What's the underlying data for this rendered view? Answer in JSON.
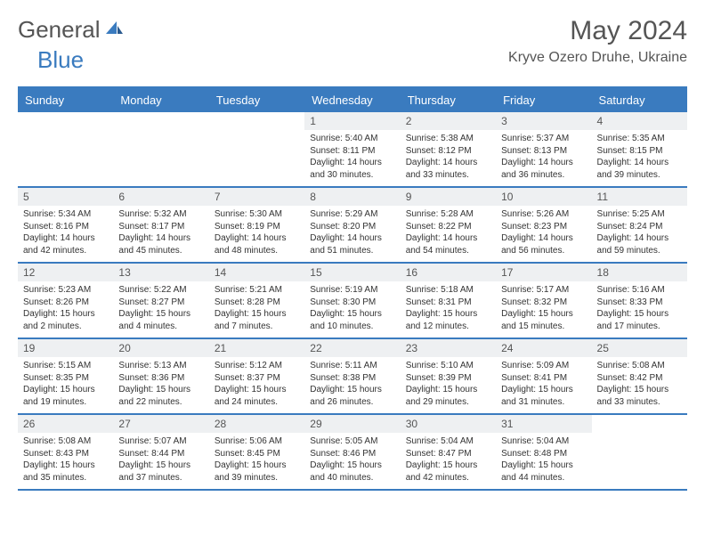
{
  "brand": {
    "part1": "General",
    "part2": "Blue"
  },
  "title": "May 2024",
  "location": "Kryve Ozero Druhe, Ukraine",
  "colors": {
    "header_bg": "#3a7bbf",
    "header_text": "#ffffff",
    "daynum_bg": "#eef0f2",
    "border": "#3a7bbf",
    "text": "#333333",
    "title_text": "#555555"
  },
  "day_headers": [
    "Sunday",
    "Monday",
    "Tuesday",
    "Wednesday",
    "Thursday",
    "Friday",
    "Saturday"
  ],
  "weeks": [
    [
      null,
      null,
      null,
      {
        "n": "1",
        "sr": "5:40 AM",
        "ss": "8:11 PM",
        "dl": "14 hours and 30 minutes."
      },
      {
        "n": "2",
        "sr": "5:38 AM",
        "ss": "8:12 PM",
        "dl": "14 hours and 33 minutes."
      },
      {
        "n": "3",
        "sr": "5:37 AM",
        "ss": "8:13 PM",
        "dl": "14 hours and 36 minutes."
      },
      {
        "n": "4",
        "sr": "5:35 AM",
        "ss": "8:15 PM",
        "dl": "14 hours and 39 minutes."
      }
    ],
    [
      {
        "n": "5",
        "sr": "5:34 AM",
        "ss": "8:16 PM",
        "dl": "14 hours and 42 minutes."
      },
      {
        "n": "6",
        "sr": "5:32 AM",
        "ss": "8:17 PM",
        "dl": "14 hours and 45 minutes."
      },
      {
        "n": "7",
        "sr": "5:30 AM",
        "ss": "8:19 PM",
        "dl": "14 hours and 48 minutes."
      },
      {
        "n": "8",
        "sr": "5:29 AM",
        "ss": "8:20 PM",
        "dl": "14 hours and 51 minutes."
      },
      {
        "n": "9",
        "sr": "5:28 AM",
        "ss": "8:22 PM",
        "dl": "14 hours and 54 minutes."
      },
      {
        "n": "10",
        "sr": "5:26 AM",
        "ss": "8:23 PM",
        "dl": "14 hours and 56 minutes."
      },
      {
        "n": "11",
        "sr": "5:25 AM",
        "ss": "8:24 PM",
        "dl": "14 hours and 59 minutes."
      }
    ],
    [
      {
        "n": "12",
        "sr": "5:23 AM",
        "ss": "8:26 PM",
        "dl": "15 hours and 2 minutes."
      },
      {
        "n": "13",
        "sr": "5:22 AM",
        "ss": "8:27 PM",
        "dl": "15 hours and 4 minutes."
      },
      {
        "n": "14",
        "sr": "5:21 AM",
        "ss": "8:28 PM",
        "dl": "15 hours and 7 minutes."
      },
      {
        "n": "15",
        "sr": "5:19 AM",
        "ss": "8:30 PM",
        "dl": "15 hours and 10 minutes."
      },
      {
        "n": "16",
        "sr": "5:18 AM",
        "ss": "8:31 PM",
        "dl": "15 hours and 12 minutes."
      },
      {
        "n": "17",
        "sr": "5:17 AM",
        "ss": "8:32 PM",
        "dl": "15 hours and 15 minutes."
      },
      {
        "n": "18",
        "sr": "5:16 AM",
        "ss": "8:33 PM",
        "dl": "15 hours and 17 minutes."
      }
    ],
    [
      {
        "n": "19",
        "sr": "5:15 AM",
        "ss": "8:35 PM",
        "dl": "15 hours and 19 minutes."
      },
      {
        "n": "20",
        "sr": "5:13 AM",
        "ss": "8:36 PM",
        "dl": "15 hours and 22 minutes."
      },
      {
        "n": "21",
        "sr": "5:12 AM",
        "ss": "8:37 PM",
        "dl": "15 hours and 24 minutes."
      },
      {
        "n": "22",
        "sr": "5:11 AM",
        "ss": "8:38 PM",
        "dl": "15 hours and 26 minutes."
      },
      {
        "n": "23",
        "sr": "5:10 AM",
        "ss": "8:39 PM",
        "dl": "15 hours and 29 minutes."
      },
      {
        "n": "24",
        "sr": "5:09 AM",
        "ss": "8:41 PM",
        "dl": "15 hours and 31 minutes."
      },
      {
        "n": "25",
        "sr": "5:08 AM",
        "ss": "8:42 PM",
        "dl": "15 hours and 33 minutes."
      }
    ],
    [
      {
        "n": "26",
        "sr": "5:08 AM",
        "ss": "8:43 PM",
        "dl": "15 hours and 35 minutes."
      },
      {
        "n": "27",
        "sr": "5:07 AM",
        "ss": "8:44 PM",
        "dl": "15 hours and 37 minutes."
      },
      {
        "n": "28",
        "sr": "5:06 AM",
        "ss": "8:45 PM",
        "dl": "15 hours and 39 minutes."
      },
      {
        "n": "29",
        "sr": "5:05 AM",
        "ss": "8:46 PM",
        "dl": "15 hours and 40 minutes."
      },
      {
        "n": "30",
        "sr": "5:04 AM",
        "ss": "8:47 PM",
        "dl": "15 hours and 42 minutes."
      },
      {
        "n": "31",
        "sr": "5:04 AM",
        "ss": "8:48 PM",
        "dl": "15 hours and 44 minutes."
      },
      null
    ]
  ],
  "labels": {
    "sunrise": "Sunrise:",
    "sunset": "Sunset:",
    "daylight": "Daylight:"
  }
}
